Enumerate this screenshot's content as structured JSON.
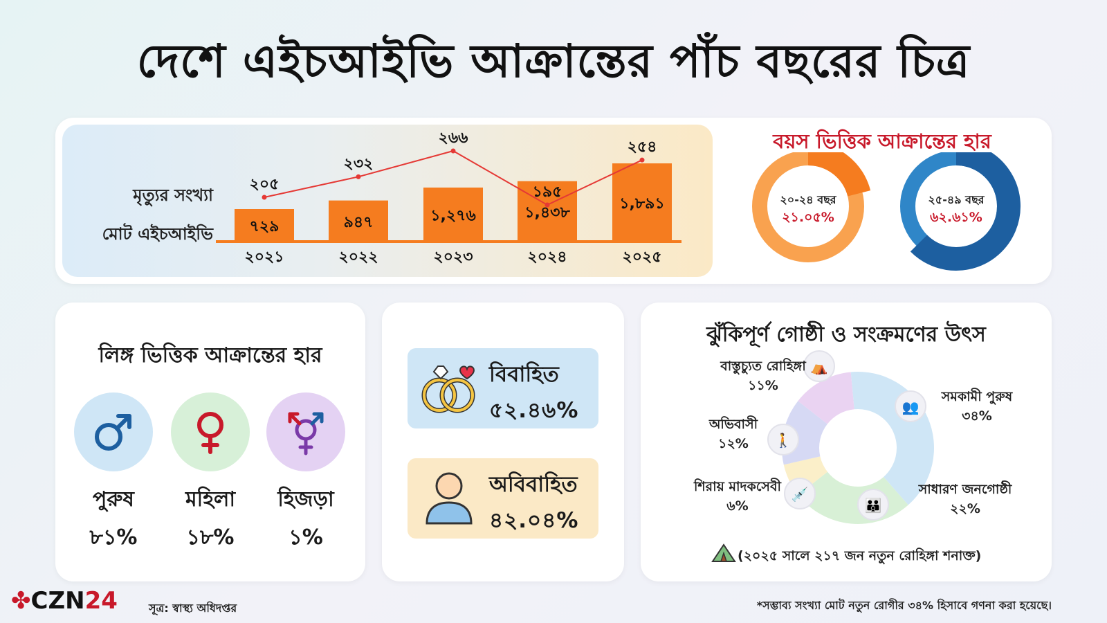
{
  "title": "দেশে এইচআইভি আক্রান্তের পাঁচ বছরের চিত্র",
  "chart_data": [
    {
      "type": "bar",
      "categories": [
        "২০২১",
        "২০২২",
        "২০২৩",
        "২০২৪",
        "২০২৫"
      ],
      "series": [
        {
          "name": "মোট এইচআইভি",
          "values": [
            729,
            947,
            1276,
            1438,
            1891
          ],
          "labels": [
            "৭২৯",
            "৯৪৭",
            "১,২৭৬",
            "১,৪৩৮",
            "১,৮৯১"
          ],
          "color": "#f57c1f"
        },
        {
          "name": "মৃত্যুর সংখ্যা",
          "values": [
            205,
            232,
            266,
            195,
            254
          ],
          "labels": [
            "২০৫",
            "২৩২",
            "২৬৬",
            "১৯৫",
            "২৫৪"
          ],
          "color": "#e53935"
        }
      ],
      "title": "",
      "xlabel": "",
      "ylabel": ""
    },
    {
      "type": "pie",
      "title": "বয়স ভিত্তিক আক্রান্তের হার",
      "slices": [
        {
          "label": "২০-২৪ বছর",
          "value_text": "২১.০৫%",
          "value": 21.05,
          "color": "#f57c1f",
          "light": "#f9a24f"
        },
        {
          "label": "২৫-৪৯ বছর",
          "value_text": "৬২.৬১%",
          "value": 62.61,
          "color": "#1d5fa0",
          "light": "#2f86c8"
        }
      ]
    },
    {
      "type": "pie",
      "title": "ঝুঁকিপূর্ণ গোষ্ঠী ও সংক্রমণের উৎস",
      "slices": [
        {
          "label": "সমকামী পুরুষ",
          "value_text": "৩৪%",
          "value": 34,
          "color": "#cfe6f6"
        },
        {
          "label": "সাধারণ জনগোষ্ঠী",
          "value_text": "২২%",
          "value": 22,
          "color": "#d8f0d6"
        },
        {
          "label": "শিরায় মাদকসেবী",
          "value_text": "৬%",
          "value": 6,
          "color": "#fbefc9"
        },
        {
          "label": "অভিবাসী",
          "value_text": "১২%",
          "value": 12,
          "color": "#d6d9f4"
        },
        {
          "label": "বাস্তুচ্যুত রোহিঙ্গা",
          "value_text": "১১%",
          "value": 11,
          "color": "#ead3f2"
        }
      ]
    }
  ],
  "rows": {
    "deaths": "মৃত্যুর সংখ্যা",
    "total": "মোট এইচআইভি"
  },
  "gender": {
    "title": "লিঙ্গ ভিত্তিক আক্রান্তের হার",
    "items": [
      {
        "label": "পুরুষ",
        "value": "৮১%",
        "icon": "male-symbol-icon",
        "bg": "#cfe6f6",
        "fg": "#1d5fa0"
      },
      {
        "label": "মহিলা",
        "value": "১৮%",
        "icon": "female-symbol-icon",
        "bg": "#d7f0d8",
        "fg": "#c8192a"
      },
      {
        "label": "হিজড়া",
        "value": "১%",
        "icon": "transgender-symbol-icon",
        "bg": "#e4d2f3",
        "fg": "#7a3aa8"
      }
    ]
  },
  "marital": {
    "married": {
      "label": "বিবাহিত",
      "value": "৫২.৪৬%",
      "icon": "wedding-rings-icon",
      "bg": "#cfe6f6"
    },
    "unmarried": {
      "label": "অবিবাহিত",
      "value": "৪২.০৪%",
      "icon": "person-icon",
      "bg": "#fbe9c6"
    }
  },
  "risk": {
    "note": "(২০২৫ সালে ২১৭ জন নতুন রোহিঙ্গা শনাক্ত)",
    "icons": [
      "tent-icon",
      "men-couple-icon",
      "people-group-icon",
      "syringe-icon",
      "migrant-walking-icon"
    ]
  },
  "logo": {
    "text": "CZN",
    "num": "24"
  },
  "source": "সূত্র: স্বাস্থ্য অধিদপ্তর",
  "footnote": "*সম্ভাব্য সংখ্যা মোট নতুন রোগীর ৩৪% হিসাবে গণনা করা হয়েছে।"
}
